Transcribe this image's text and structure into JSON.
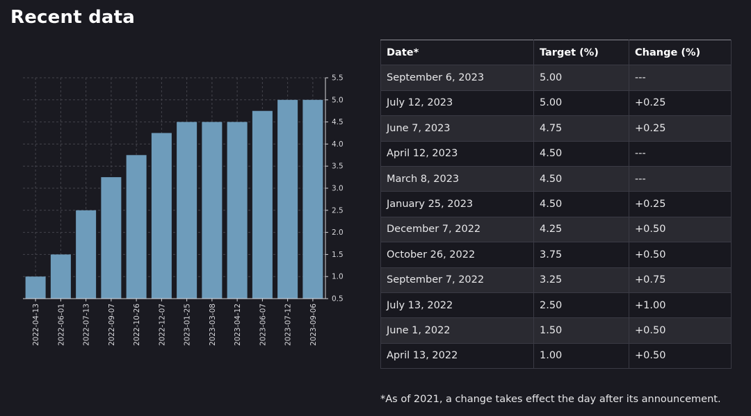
{
  "page": {
    "title": "Recent data",
    "footnote": "*As of 2021, a change takes effect the day after its announcement."
  },
  "colors": {
    "background": "#1a1a21",
    "bar": "#6e9cbb",
    "grid": "#44444c",
    "tick_text": "#d8d8dc"
  },
  "table": {
    "headers": [
      "Date*",
      "Target (%)",
      "Change (%)"
    ],
    "rows": [
      [
        "September 6, 2023",
        "5.00",
        "---"
      ],
      [
        "July 12, 2023",
        "5.00",
        "+0.25"
      ],
      [
        "June 7, 2023",
        "4.75",
        "+0.25"
      ],
      [
        "April 12, 2023",
        "4.50",
        "---"
      ],
      [
        "March 8, 2023",
        "4.50",
        "---"
      ],
      [
        "January 25, 2023",
        "4.50",
        "+0.25"
      ],
      [
        "December 7, 2022",
        "4.25",
        "+0.50"
      ],
      [
        "October 26, 2022",
        "3.75",
        "+0.50"
      ],
      [
        "September 7, 2022",
        "3.25",
        "+0.75"
      ],
      [
        "July 13, 2022",
        "2.50",
        "+1.00"
      ],
      [
        "June 1, 2022",
        "1.50",
        "+0.50"
      ],
      [
        "April 13, 2022",
        "1.00",
        "+0.50"
      ]
    ]
  },
  "chart_data": {
    "type": "bar",
    "categories": [
      "2022-04-13",
      "2022-06-01",
      "2022-07-13",
      "2022-09-07",
      "2022-10-26",
      "2022-12-07",
      "2023-01-25",
      "2023-03-08",
      "2023-04-12",
      "2023-06-07",
      "2023-07-12",
      "2023-09-06"
    ],
    "values": [
      1.0,
      1.5,
      2.5,
      3.25,
      3.75,
      4.25,
      4.5,
      4.5,
      4.5,
      4.75,
      5.0,
      5.0
    ],
    "yticks": [
      "0.5",
      "1.0",
      "1.5",
      "2.0",
      "2.5",
      "3.0",
      "3.5",
      "4.0",
      "4.5",
      "5.0",
      "5.5"
    ],
    "ylim": [
      0.5,
      5.5
    ],
    "title": "",
    "xlabel": "",
    "ylabel": "",
    "y_axis_side": "right",
    "grid": true,
    "legend": "none"
  }
}
